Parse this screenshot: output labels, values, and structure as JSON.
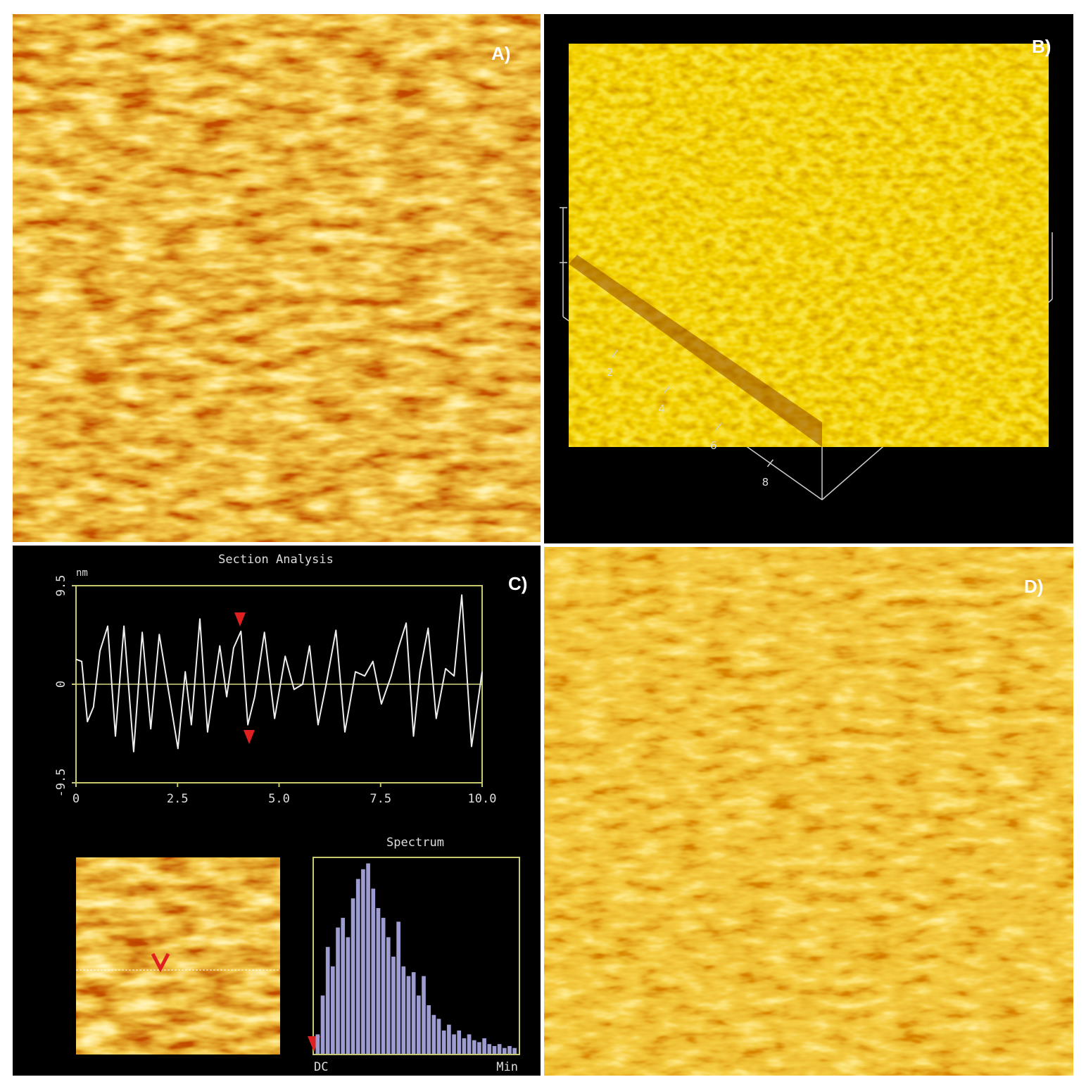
{
  "panels": [
    {
      "label": "A)"
    },
    {
      "label": "B)",
      "axis_ticks": [
        2,
        4,
        6,
        8
      ]
    },
    {
      "label": "C)"
    },
    {
      "label": "D)"
    }
  ],
  "section_analysis": {
    "type": "line",
    "title": "Section Analysis",
    "y_unit": "nm",
    "x": [
      0,
      0.14,
      0.28,
      0.43,
      0.59,
      0.78,
      0.97,
      1.18,
      1.42,
      1.63,
      1.84,
      2.05,
      2.29,
      2.51,
      2.69,
      2.84,
      3.05,
      3.24,
      3.54,
      3.71,
      3.88,
      4.06,
      4.23,
      4.4,
      4.64,
      4.89,
      5.15,
      5.37,
      5.58,
      5.75,
      5.96,
      6.15,
      6.4,
      6.62,
      6.88,
      7.11,
      7.31,
      7.52,
      7.76,
      7.94,
      8.13,
      8.31,
      8.47,
      8.67,
      8.87,
      9.1,
      9.31,
      9.5,
      9.74,
      10
    ],
    "values": [
      2.4,
      2.2,
      -3.6,
      -2.2,
      3.2,
      5.6,
      -5,
      5.6,
      -6.5,
      5,
      -4.3,
      4.8,
      -0.9,
      -6.2,
      1.2,
      -3.9,
      6.3,
      -4.6,
      3.7,
      -1.2,
      3.5,
      5.1,
      -3.9,
      -1.2,
      5,
      -3.3,
      2.7,
      -0.5,
      0,
      3.7,
      -3.9,
      -0.2,
      5.2,
      -4.6,
      1.2,
      0.8,
      2.2,
      -1.9,
      0.8,
      3.5,
      5.9,
      -5,
      1.2,
      5.4,
      -3.3,
      1.5,
      0.8,
      8.6,
      -6,
      1.2
    ],
    "xlim": [
      0,
      10
    ],
    "ylim": [
      -9.5,
      9.5
    ],
    "xticks": [
      0,
      2.5,
      {
        "value": 5,
        "label": "5.0"
      },
      7.5,
      {
        "value": 10,
        "label": "10.0"
      }
    ],
    "yticks": [
      9.5,
      0,
      -9.5
    ]
  },
  "spectrum": {
    "type": "bar",
    "title": "Spectrum",
    "x_labels": [
      "DC",
      "Min"
    ],
    "values": [
      10,
      30,
      55,
      45,
      65,
      70,
      60,
      80,
      90,
      95,
      98,
      85,
      75,
      70,
      60,
      50,
      68,
      45,
      40,
      42,
      30,
      40,
      25,
      20,
      18,
      12,
      15,
      10,
      12,
      8,
      10,
      7,
      6,
      8,
      5,
      4,
      5,
      3,
      4,
      3
    ]
  }
}
